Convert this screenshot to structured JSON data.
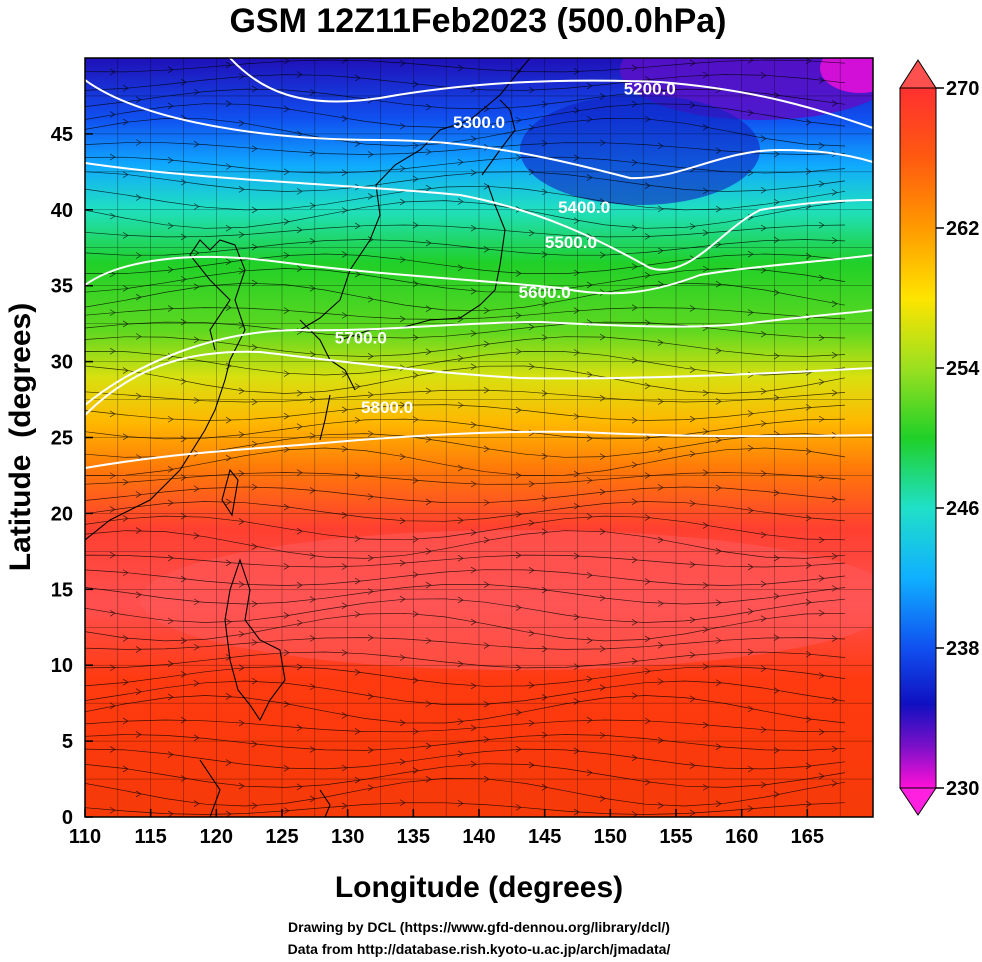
{
  "title": "GSM 12Z11Feb2023 (500.0hPa)",
  "map": {
    "xlabel": "Longitude (degrees)",
    "ylabel": "Latitude  (degrees)",
    "lon_range": [
      110,
      170
    ],
    "lat_range": [
      0,
      50
    ],
    "lon_ticks": [
      "110",
      "115",
      "120",
      "125",
      "130",
      "135",
      "140",
      "145",
      "150",
      "155",
      "160",
      "165"
    ],
    "lat_ticks": [
      "0",
      "5",
      "10",
      "15",
      "20",
      "25",
      "30",
      "35",
      "40",
      "45"
    ],
    "grid": true
  },
  "colorbar": {
    "min": 230,
    "max": 270,
    "tick_labels": [
      "230",
      "238",
      "246",
      "254",
      "262",
      "270"
    ]
  },
  "contours": [
    {
      "label": "5200.0",
      "lat_label_lon": 153,
      "label_lat": 47.6
    },
    {
      "label": "5300.0",
      "lat_label_lon": 140,
      "label_lat": 45.4
    },
    {
      "label": "5400.0",
      "lat_label_lon": 148,
      "label_lat": 39.8
    },
    {
      "label": "5500.0",
      "lat_label_lon": 147,
      "label_lat": 37.5
    },
    {
      "label": "5600.0",
      "lat_label_lon": 145,
      "label_lat": 34.2
    },
    {
      "label": "5700.0",
      "lat_label_lon": 131,
      "label_lat": 31.2
    },
    {
      "label": "5800.0",
      "lat_label_lon": 133,
      "label_lat": 26.6
    }
  ],
  "credits": {
    "line1": "Drawing by DCL (https://www.gfd-dennou.org/library/dcl/)",
    "line2": "Data from http://database.rish.kyoto-u.ac.jp/arch/jmadata/"
  }
}
